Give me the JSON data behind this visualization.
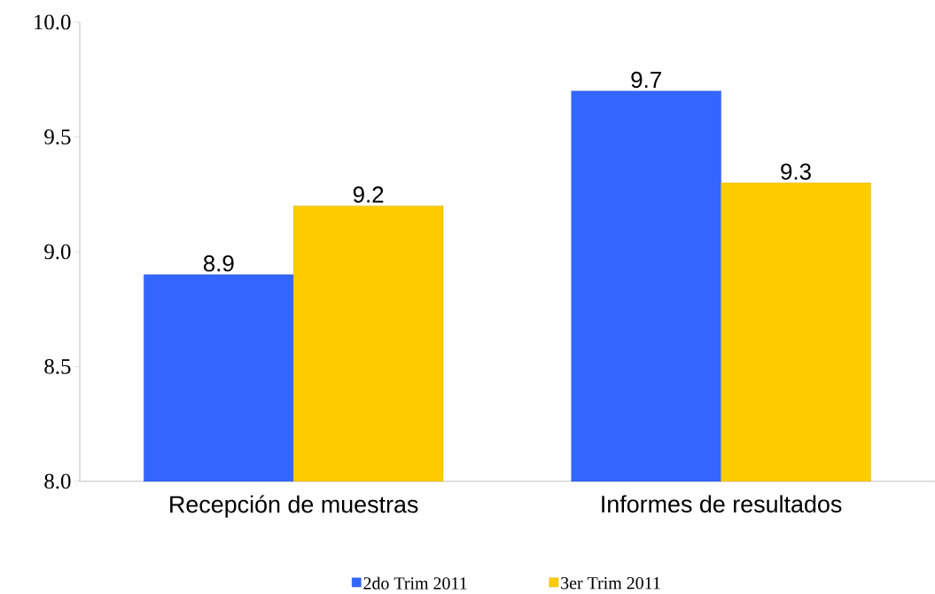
{
  "chart_data": {
    "type": "bar",
    "categories": [
      "Recepción de muestras",
      "Informes de resultados"
    ],
    "series": [
      {
        "name": "2do Trim 2011",
        "color": "#3366ff",
        "values": [
          8.9,
          9.7
        ]
      },
      {
        "name": "3er Trim 2011",
        "color": "#ffcc00",
        "values": [
          9.2,
          9.3
        ]
      }
    ],
    "ylim": [
      8.0,
      10.0
    ],
    "yticks": [
      {
        "value": 8.0,
        "label": "8.0"
      },
      {
        "value": 8.5,
        "label": "8.5"
      },
      {
        "value": 9.0,
        "label": "9.0"
      },
      {
        "value": 9.5,
        "label": "9.5"
      },
      {
        "value": 10.0,
        "label": "10.0"
      }
    ],
    "data_labels": true,
    "grid": false,
    "legend": "bottom"
  }
}
